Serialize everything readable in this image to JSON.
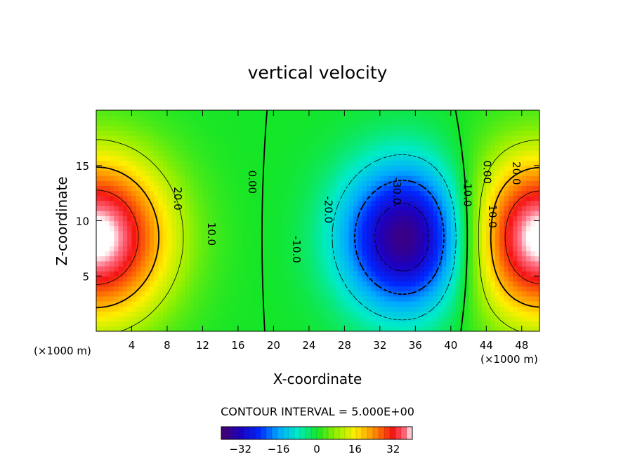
{
  "chart_data": {
    "type": "heatmap",
    "title": "vertical velocity",
    "xlabel": "X-coordinate",
    "ylabel": "Z-coordinate",
    "x_unit_label": "(×1000 m)",
    "xlim": [
      0,
      50
    ],
    "ylim": [
      0,
      20
    ],
    "x_ticks": [
      4,
      8,
      12,
      16,
      20,
      24,
      28,
      32,
      36,
      40,
      44,
      48
    ],
    "y_ticks": [
      5,
      10,
      15
    ],
    "contour_interval_text": "CONTOUR INTERVAL = 5.000E+00",
    "contour_labels": [
      {
        "text": "20.0",
        "x": 8.8,
        "z": 12.0
      },
      {
        "text": "10.0",
        "x": 12.6,
        "z": 8.8
      },
      {
        "text": "0.00",
        "x": 17.2,
        "z": 13.5
      },
      {
        "text": "-20.0",
        "x": 25.8,
        "z": 11.0
      },
      {
        "text": "-30.0",
        "x": 33.5,
        "z": 12.7
      },
      {
        "text": "-10.0",
        "x": 22.2,
        "z": 7.4
      },
      {
        "text": "-10.0",
        "x": 41.5,
        "z": 12.5
      },
      {
        "text": "0.00",
        "x": 43.7,
        "z": 14.4
      },
      {
        "text": "10.0",
        "x": 44.3,
        "z": 10.4
      },
      {
        "text": "20.0",
        "x": 47.0,
        "z": 14.3
      }
    ],
    "colorbar": {
      "range": [
        -40,
        40
      ],
      "ticks": [
        -32,
        -16,
        0,
        16,
        32
      ],
      "tick_labels": [
        "−32",
        "−16",
        "0",
        "16",
        "32"
      ]
    },
    "field_features": [
      {
        "kind": "updraft",
        "x": 0,
        "z": 8.5,
        "peak": 40
      },
      {
        "kind": "updraft",
        "x": 50,
        "z": 8.5,
        "peak": 40
      },
      {
        "kind": "downdraft",
        "x": 35,
        "z": 8.5,
        "peak": -38
      }
    ]
  }
}
